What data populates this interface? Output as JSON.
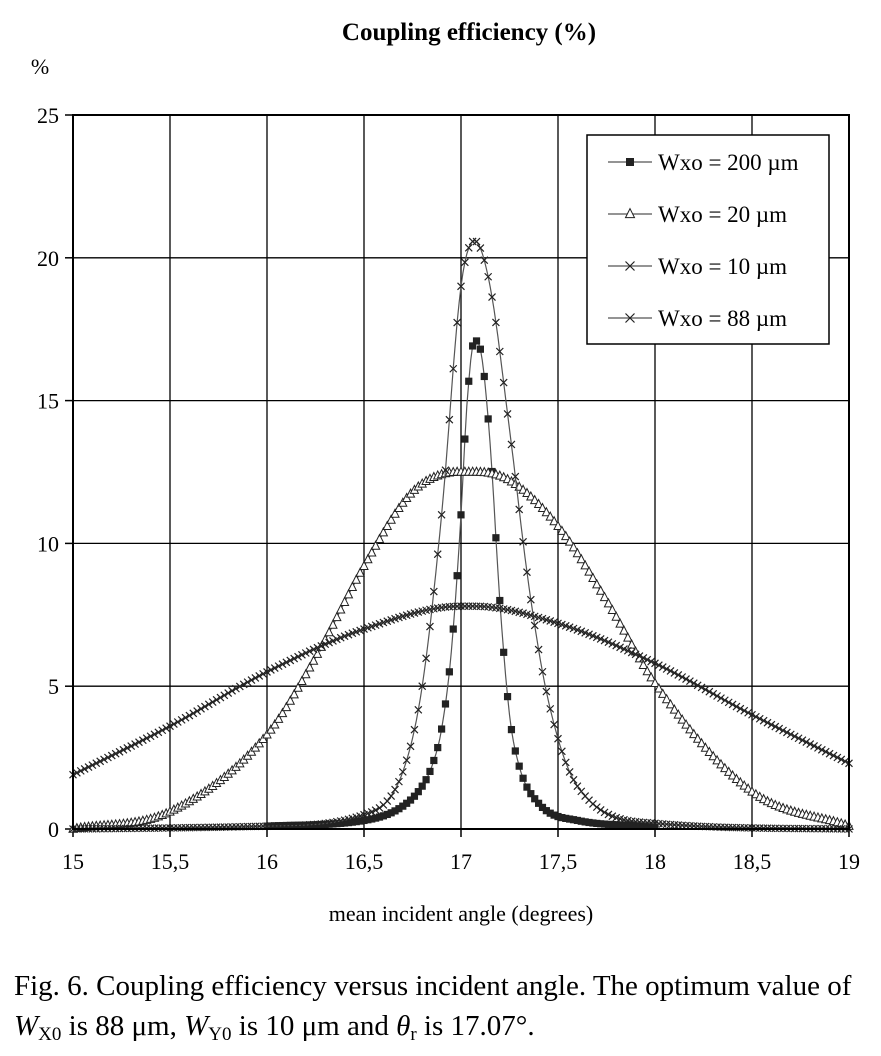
{
  "chart_data": {
    "type": "line",
    "title": "Coupling efficiency (%)",
    "ylabel": "%",
    "xlabel": "mean incident angle (degrees)",
    "xlim": [
      15,
      19
    ],
    "ylim": [
      0,
      25
    ],
    "x_ticks": [
      "15",
      "15,5",
      "16",
      "16,5",
      "17",
      "17,5",
      "18",
      "18,5",
      "19"
    ],
    "y_ticks": [
      "0",
      "5",
      "10",
      "15",
      "20",
      "25"
    ],
    "grid": true,
    "legend_position": "top-right",
    "series": [
      {
        "name": "Wxo = 200 µm",
        "marker": "square",
        "x": [
          16.0,
          16.5,
          16.7,
          16.8,
          16.85,
          16.9,
          16.95,
          17.0,
          17.03,
          17.07,
          17.1,
          17.15,
          17.2,
          17.25,
          17.3,
          17.4,
          17.6,
          18.0
        ],
        "y": [
          0.1,
          0.3,
          0.8,
          1.5,
          2.2,
          3.5,
          6.2,
          11.0,
          14.8,
          17.1,
          16.8,
          13.5,
          8.0,
          4.0,
          2.2,
          0.9,
          0.3,
          0.1
        ]
      },
      {
        "name": "Wxo = 20 µm",
        "marker": "triangle",
        "x": [
          15.0,
          15.5,
          16.0,
          16.25,
          16.5,
          16.75,
          17.0,
          17.07,
          17.25,
          17.5,
          17.75,
          18.0,
          18.5,
          19.0
        ],
        "y": [
          0.0,
          0.6,
          3.3,
          6.0,
          9.2,
          11.8,
          12.5,
          12.5,
          12.2,
          10.6,
          8.0,
          5.1,
          1.3,
          0.1
        ]
      },
      {
        "name": "Wxo = 10 µm",
        "marker": "x",
        "x": [
          15.0,
          16.0,
          16.5,
          16.7,
          16.8,
          16.9,
          17.0,
          17.07,
          17.15,
          17.25,
          17.35,
          17.45,
          17.6,
          18.0,
          19.0
        ],
        "y": [
          0.0,
          0.1,
          0.5,
          2.0,
          5.0,
          11.0,
          19.0,
          20.6,
          19.0,
          14.0,
          8.5,
          4.5,
          1.5,
          0.2,
          0.0
        ]
      },
      {
        "name": "Wxo = 88 µm",
        "marker": "x",
        "x": [
          15.0,
          15.5,
          16.0,
          16.5,
          17.0,
          17.07,
          17.5,
          18.0,
          18.5,
          19.0
        ],
        "y": [
          1.9,
          3.6,
          5.5,
          7.0,
          7.8,
          7.8,
          7.2,
          5.8,
          4.0,
          2.3
        ]
      }
    ]
  },
  "caption": {
    "prefix": "Fig. 6. Coupling efficiency versus incident angle. The optimum value of ",
    "wx_symbol": "W",
    "wx_sub": "X0",
    "wx_text": " is 88 μm, ",
    "wy_symbol": "W",
    "wy_sub": "Y0",
    "wy_text": " is 10 μm and ",
    "theta_symbol": "θ",
    "theta_sub": "r",
    "theta_text": " is 17.07°."
  }
}
